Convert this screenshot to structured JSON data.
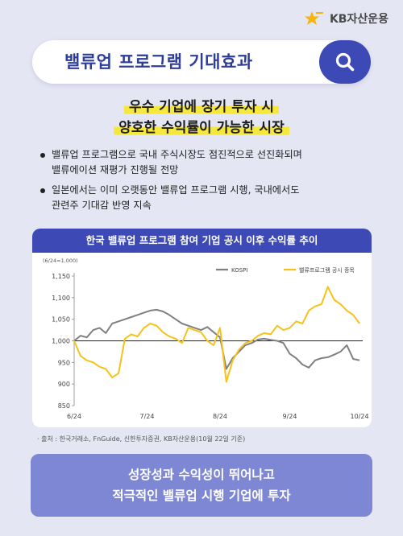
{
  "brand": {
    "name": "KB자산운용"
  },
  "search": {
    "title": "밸류업 프로그램 기대효과"
  },
  "headline": {
    "line1": "우수 기업에 장기 투자 시",
    "line2": "양호한 수익률이 가능한 시장"
  },
  "bullets": [
    {
      "line1": "밸류업 프로그램으로 국내 주식시장도 점진적으로 선진화되며",
      "line2": "밸류에이션 재평가 진행될 전망"
    },
    {
      "line1": "일본에서는 이미 오랫동안 밸류업 프로그램 시행, 국내에서도",
      "line2": "관련주 기대감 반영 지속"
    }
  ],
  "chart_data": {
    "type": "line",
    "title": "한국 밸류업 프로그램 참여 기업 공시 이후 수익률 추이",
    "unit_note": "(6/24=1,000)",
    "xlabel": "",
    "ylabel": "",
    "x_ticks": [
      "6/24",
      "7/24",
      "8/24",
      "9/24",
      "10/24"
    ],
    "ylim": [
      850,
      1150
    ],
    "y_ticks": [
      "850",
      "900",
      "950",
      "1,000",
      "1,050",
      "1,100",
      "1,150"
    ],
    "baseline": 1000,
    "legend_position": "top-right",
    "x_range": [
      0,
      91
    ],
    "series": [
      {
        "name": "KOSPI",
        "color": "#808080",
        "x": [
          0,
          2,
          4,
          6,
          8,
          10,
          12,
          14,
          16,
          18,
          20,
          22,
          24,
          26,
          28,
          30,
          32,
          34,
          36,
          38,
          40,
          42,
          44,
          46,
          48,
          50,
          52,
          54,
          56,
          58,
          60,
          62,
          64,
          66,
          68,
          70,
          72,
          74,
          76,
          78,
          80,
          82,
          84,
          86,
          88,
          90
        ],
        "y": [
          1000,
          1012,
          1008,
          1025,
          1030,
          1018,
          1040,
          1045,
          1050,
          1055,
          1060,
          1065,
          1070,
          1072,
          1068,
          1060,
          1050,
          1040,
          1035,
          1030,
          1025,
          1032,
          1020,
          1008,
          935,
          960,
          975,
          990,
          995,
          1003,
          1005,
          1002,
          1000,
          995,
          970,
          960,
          945,
          938,
          955,
          960,
          962,
          968,
          975,
          990,
          958,
          955
        ]
      },
      {
        "name": "밸류프로그램 공시 종목",
        "color": "#f6c21a",
        "x": [
          0,
          2,
          4,
          6,
          8,
          10,
          12,
          14,
          16,
          18,
          20,
          22,
          24,
          26,
          28,
          30,
          32,
          34,
          36,
          38,
          40,
          42,
          44,
          46,
          48,
          50,
          52,
          54,
          56,
          58,
          60,
          62,
          64,
          66,
          68,
          70,
          72,
          74,
          76,
          78,
          80,
          82,
          84,
          86,
          88,
          90
        ],
        "y": [
          1000,
          965,
          955,
          950,
          940,
          935,
          915,
          925,
          1005,
          1015,
          1010,
          1030,
          1040,
          1035,
          1020,
          1010,
          1005,
          995,
          1030,
          1025,
          1020,
          1000,
          990,
          1030,
          905,
          955,
          980,
          995,
          1000,
          1012,
          1018,
          1015,
          1035,
          1025,
          1030,
          1045,
          1040,
          1070,
          1080,
          1085,
          1125,
          1095,
          1085,
          1070,
          1060,
          1040
        ]
      }
    ]
  },
  "source_text": "· 출처 : 한국거래소, FnGuide, 신한투자증권, KB자산운용(10월 22일 기준)",
  "footer": {
    "line1": "성장성과 수익성이 뛰어나고",
    "line2": "적극적인 밸류업 시행 기업에 투자"
  }
}
